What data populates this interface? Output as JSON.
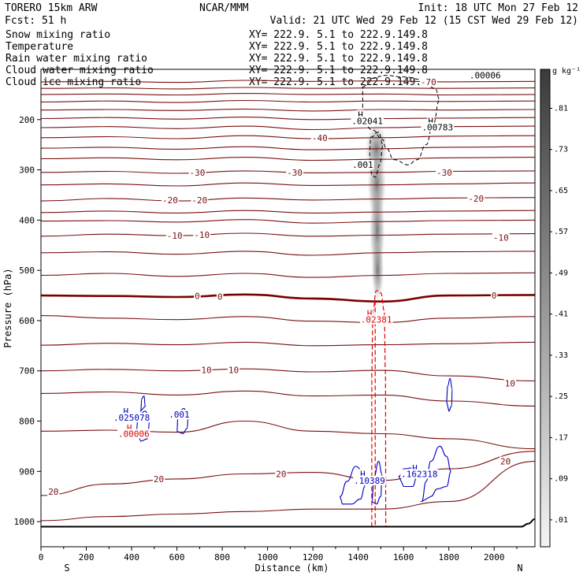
{
  "header": {
    "model": "TORERO  15km ARW",
    "center": "NCAR/MMM",
    "init": "Init: 18 UTC Mon 27 Feb 12",
    "fcst": "Fcst:   51 h",
    "valid": "Valid: 21 UTC Wed 29 Feb 12 (15 CST Wed 29 Feb 12)"
  },
  "fields": [
    {
      "name": "Snow mixing ratio",
      "xy": "XY= 222.9.  5.1 to 222.9.149.8",
      "color": "#000000"
    },
    {
      "name": "Temperature",
      "xy": "XY= 222.9.  5.1 to 222.9.149.8",
      "color": "#b00000"
    },
    {
      "name": "Rain water mixing ratio",
      "xy": "XY= 222.9.  5.1 to 222.9.149.8",
      "color": "#e00000"
    },
    {
      "name": "Cloud water mixing ratio",
      "xy": "XY= 222.9.  5.1 to 222.9.149.8",
      "color": "#0000c0"
    },
    {
      "name": "Cloud ice mixing ratio",
      "xy": "XY= 222.9.  5.1 to 222.9.149.8",
      "color": "#000000"
    }
  ],
  "colors": {
    "temperature": "#7a1010",
    "zero_isotherm": "#7a0000",
    "rain": "#e00000",
    "cloud_water": "#0000c0",
    "cloud_ice": "#000000",
    "ground": "#000000"
  },
  "chart_data": {
    "type": "contour",
    "xlabel": "Distance (km)",
    "ylabel": "Pressure (hPa)",
    "xlim": [
      0,
      2180
    ],
    "ylim": [
      1050,
      100
    ],
    "x_ticks": [
      0,
      200,
      400,
      600,
      800,
      1000,
      1200,
      1400,
      1600,
      1800,
      2000
    ],
    "y_ticks": [
      200,
      300,
      400,
      500,
      600,
      700,
      800,
      900,
      1000
    ],
    "x_end_labels": [
      "S",
      "N"
    ],
    "colorbar": {
      "unit": "g kg⁻¹",
      "ticks": [
        ".01",
        ".09",
        ".17",
        ".25",
        ".33",
        ".41",
        ".49",
        ".57",
        ".65",
        ".73",
        ".81"
      ]
    },
    "isotherms": [
      {
        "label": "-70",
        "p": [
          125,
          124,
          126,
          122,
          124,
          123,
          125,
          124
        ],
        "x": [
          0,
          300,
          600,
          900,
          1200,
          1500,
          1800,
          2180
        ]
      },
      {
        "label": "",
        "p": [
          138,
          137,
          139,
          136,
          138,
          137,
          138,
          137
        ],
        "x": [
          0,
          300,
          600,
          900,
          1200,
          1500,
          1800,
          2180
        ]
      },
      {
        "label": "",
        "p": [
          150,
          149,
          151,
          148,
          150,
          149,
          151,
          150
        ],
        "x": [
          0,
          300,
          600,
          900,
          1200,
          1500,
          1800,
          2180
        ]
      },
      {
        "label": "",
        "p": [
          165,
          163,
          166,
          162,
          165,
          163,
          164,
          163
        ],
        "x": [
          0,
          300,
          600,
          900,
          1200,
          1500,
          1800,
          2180
        ]
      },
      {
        "label": "",
        "p": [
          181,
          180,
          182,
          179,
          183,
          180,
          181,
          180
        ],
        "x": [
          0,
          300,
          600,
          900,
          1200,
          1500,
          1800,
          2180
        ]
      },
      {
        "label": "",
        "p": [
          198,
          196,
          199,
          195,
          200,
          198,
          197,
          196
        ],
        "x": [
          0,
          300,
          600,
          900,
          1200,
          1500,
          1800,
          2180
        ]
      },
      {
        "label": "",
        "p": [
          216,
          214,
          218,
          213,
          220,
          216,
          214,
          213
        ],
        "x": [
          0,
          300,
          600,
          900,
          1200,
          1500,
          1800,
          2180
        ]
      },
      {
        "label": "-40",
        "p": [
          236,
          234,
          238,
          232,
          238,
          236,
          233,
          232
        ],
        "x": [
          0,
          300,
          600,
          900,
          1200,
          1500,
          1800,
          2180
        ]
      },
      {
        "label": "",
        "p": [
          257,
          255,
          259,
          254,
          260,
          258,
          255,
          254
        ],
        "x": [
          0,
          300,
          600,
          900,
          1200,
          1500,
          1800,
          2180
        ]
      },
      {
        "label": "",
        "p": [
          278,
          276,
          280,
          275,
          281,
          279,
          276,
          275
        ],
        "x": [
          0,
          300,
          600,
          900,
          1200,
          1500,
          1800,
          2180
        ]
      },
      {
        "label": "-30",
        "p": [
          305,
          303,
          307,
          302,
          306,
          305,
          303,
          302
        ],
        "x": [
          0,
          300,
          600,
          900,
          1200,
          1500,
          1800,
          2180
        ]
      },
      {
        "label": "",
        "p": [
          330,
          328,
          332,
          326,
          331,
          330,
          328,
          326
        ],
        "x": [
          0,
          300,
          600,
          900,
          1200,
          1500,
          1800,
          2180
        ]
      },
      {
        "label": "-20",
        "p": [
          362,
          357,
          362,
          356,
          360,
          358,
          356,
          355
        ],
        "x": [
          0,
          300,
          600,
          900,
          1200,
          1500,
          1800,
          2180
        ]
      },
      {
        "label": "",
        "p": [
          385,
          382,
          386,
          381,
          386,
          384,
          382,
          381
        ],
        "x": [
          0,
          300,
          600,
          900,
          1200,
          1500,
          1800,
          2180
        ]
      },
      {
        "label": "",
        "p": [
          402,
          401,
          404,
          399,
          406,
          403,
          401,
          400
        ],
        "x": [
          0,
          300,
          600,
          900,
          1200,
          1500,
          1800,
          2180
        ]
      },
      {
        "label": "-10",
        "p": [
          432,
          428,
          431,
          426,
          432,
          430,
          428,
          427
        ],
        "x": [
          0,
          300,
          600,
          900,
          1200,
          1500,
          1800,
          2180
        ]
      },
      {
        "label": "",
        "p": [
          465,
          463,
          468,
          462,
          470,
          465,
          463,
          462
        ],
        "x": [
          0,
          300,
          600,
          900,
          1200,
          1500,
          1800,
          2180
        ]
      },
      {
        "label": "",
        "p": [
          510,
          506,
          512,
          506,
          514,
          510,
          506,
          505
        ],
        "x": [
          0,
          300,
          600,
          900,
          1200,
          1500,
          1800,
          2180
        ]
      },
      {
        "label": "0",
        "p": [
          550,
          551,
          553,
          548,
          556,
          562,
          550,
          549
        ],
        "x": [
          0,
          300,
          600,
          900,
          1200,
          1500,
          1800,
          2180
        ],
        "bold": true
      },
      {
        "label": "",
        "p": [
          590,
          595,
          598,
          592,
          601,
          604,
          595,
          592
        ],
        "x": [
          0,
          300,
          600,
          900,
          1200,
          1500,
          1800,
          2180
        ]
      },
      {
        "label": "",
        "p": [
          649,
          645,
          648,
          643,
          650,
          648,
          646,
          643
        ],
        "x": [
          0,
          300,
          600,
          900,
          1200,
          1500,
          1800,
          2180
        ]
      },
      {
        "label": "10",
        "p": [
          700,
          697,
          700,
          696,
          702,
          699,
          710,
          720
        ],
        "x": [
          0,
          300,
          600,
          900,
          1200,
          1500,
          1800,
          2180
        ]
      },
      {
        "label": "",
        "p": [
          745,
          742,
          748,
          740,
          750,
          748,
          760,
          770
        ],
        "x": [
          0,
          300,
          600,
          900,
          1200,
          1500,
          1800,
          2180
        ]
      },
      {
        "label": "",
        "p": [
          820,
          818,
          822,
          800,
          820,
          825,
          835,
          855
        ],
        "x": [
          0,
          300,
          600,
          900,
          1200,
          1500,
          1800,
          2180
        ]
      },
      {
        "label": "20",
        "p": [
          948,
          925,
          915,
          905,
          902,
          918,
          895,
          860
        ],
        "x": [
          0,
          300,
          600,
          900,
          1200,
          1500,
          1800,
          2180
        ]
      },
      {
        "label": "",
        "p": [
          998,
          990,
          985,
          980,
          975,
          975,
          960,
          880
        ],
        "x": [
          0,
          300,
          600,
          900,
          1200,
          1500,
          1800,
          2180
        ]
      }
    ],
    "ground_surface_hpa": 1010,
    "labels_temperature": [
      {
        "text": "-70",
        "x": 1710,
        "p": 125
      },
      {
        "text": "-40",
        "x": 1230,
        "p": 236
      },
      {
        "text": "-30",
        "x": 690,
        "p": 305
      },
      {
        "text": "-30",
        "x": 1120,
        "p": 305
      },
      {
        "text": "-30",
        "x": 1780,
        "p": 305
      },
      {
        "text": "-20",
        "x": 570,
        "p": 360
      },
      {
        "text": "-20",
        "x": 700,
        "p": 360
      },
      {
        "text": "-20",
        "x": 1920,
        "p": 357
      },
      {
        "text": "-10",
        "x": 590,
        "p": 431
      },
      {
        "text": "-10",
        "x": 710,
        "p": 429
      },
      {
        "text": "-10",
        "x": 2030,
        "p": 435
      },
      {
        "text": "0",
        "x": 690,
        "p": 551
      },
      {
        "text": "0",
        "x": 790,
        "p": 552
      },
      {
        "text": "0",
        "x": 2000,
        "p": 550
      },
      {
        "text": "10",
        "x": 730,
        "p": 698
      },
      {
        "text": "10",
        "x": 850,
        "p": 698
      },
      {
        "text": "10",
        "x": 2070,
        "p": 725
      },
      {
        "text": "20",
        "x": 55,
        "p": 940
      },
      {
        "text": "20",
        "x": 520,
        "p": 915
      },
      {
        "text": "20",
        "x": 1060,
        "p": 905
      },
      {
        "text": "20",
        "x": 2050,
        "p": 880
      }
    ],
    "labels_ice": [
      {
        "text": "H",
        "x": 1410,
        "p": 190
      },
      {
        "text": ".02041",
        "x": 1440,
        "p": 203
      },
      {
        "text": "H",
        "x": 1720,
        "p": 203
      },
      {
        "text": ".00783",
        "x": 1750,
        "p": 215
      },
      {
        "text": ".001",
        "x": 1420,
        "p": 290
      },
      {
        "text": ".00006",
        "x": 1960,
        "p": 112
      }
    ],
    "labels_rain": [
      {
        "text": "H",
        "x": 1450,
        "p": 585
      },
      {
        "text": ".02381",
        "x": 1480,
        "p": 598
      },
      {
        "text": "H",
        "x": 390,
        "p": 813
      },
      {
        "text": ".00006",
        "x": 410,
        "p": 825
      }
    ],
    "labels_cloud_water": [
      {
        "text": "H",
        "x": 375,
        "p": 780
      },
      {
        "text": ".025078",
        "x": 400,
        "p": 793
      },
      {
        "text": ".001",
        "x": 610,
        "p": 787
      },
      {
        "text": "H",
        "x": 1420,
        "p": 905
      },
      {
        "text": ".10389",
        "x": 1450,
        "p": 918
      },
      {
        "text": "H",
        "x": 1650,
        "p": 893
      },
      {
        "text": ".162318",
        "x": 1670,
        "p": 905
      }
    ]
  }
}
